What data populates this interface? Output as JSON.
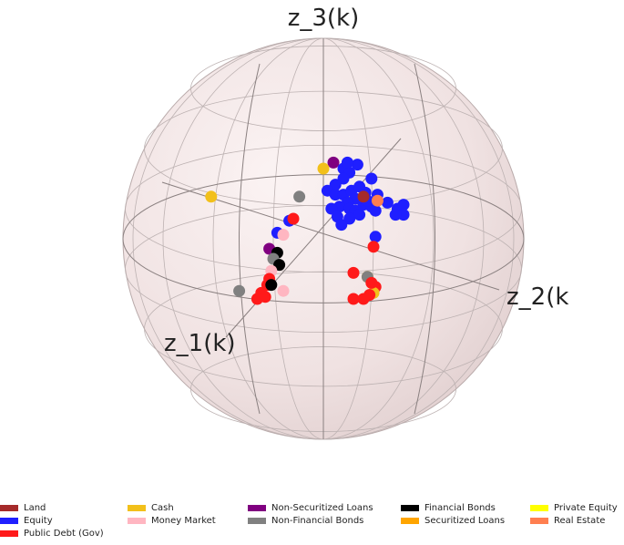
{
  "chart_data": {
    "type": "scatter",
    "title": "",
    "axes": {
      "z1": "z_1(k)",
      "z2": "z_2(k",
      "z3": "z_3(k)"
    },
    "categories": [
      {
        "name": "Land",
        "color": "#a52a2a"
      },
      {
        "name": "Equity",
        "color": "#1f1fff"
      },
      {
        "name": "Public Debt (Gov)",
        "color": "#ff1a1a"
      },
      {
        "name": "Cash",
        "color": "#f2c01a"
      },
      {
        "name": "Money Market",
        "color": "#ffb6c1"
      },
      {
        "name": "Non-Securitized Loans",
        "color": "#800080"
      },
      {
        "name": "Non-Financial Bonds",
        "color": "#808080"
      },
      {
        "name": "Financial Bonds",
        "color": "#000000"
      },
      {
        "name": "Securitized Loans",
        "color": "#ffa500"
      },
      {
        "name": "Private Equity",
        "color": "#ffff00"
      },
      {
        "name": "Real Estate",
        "color": "#ff7f50"
      }
    ],
    "points": [
      {
        "c": "Non-Securitized Loans",
        "x": 0.05,
        "y": 0.38
      },
      {
        "c": "Cash",
        "x": 0.0,
        "y": 0.35
      },
      {
        "c": "Equity",
        "x": 0.1,
        "y": 0.35
      },
      {
        "c": "Equity",
        "x": 0.13,
        "y": 0.33
      },
      {
        "c": "Equity",
        "x": 0.1,
        "y": 0.3
      },
      {
        "c": "Equity",
        "x": 0.06,
        "y": 0.27
      },
      {
        "c": "Equity",
        "x": 0.02,
        "y": 0.24
      },
      {
        "c": "Equity",
        "x": 0.06,
        "y": 0.22
      },
      {
        "c": "Equity",
        "x": 0.1,
        "y": 0.22
      },
      {
        "c": "Equity",
        "x": 0.14,
        "y": 0.24
      },
      {
        "c": "Equity",
        "x": 0.18,
        "y": 0.26
      },
      {
        "c": "Equity",
        "x": 0.21,
        "y": 0.23
      },
      {
        "c": "Equity",
        "x": 0.16,
        "y": 0.2
      },
      {
        "c": "Equity",
        "x": 0.12,
        "y": 0.18
      },
      {
        "c": "Equity",
        "x": 0.08,
        "y": 0.16
      },
      {
        "c": "Equity",
        "x": 0.04,
        "y": 0.15
      },
      {
        "c": "Equity",
        "x": 0.13,
        "y": 0.15
      },
      {
        "c": "Equity",
        "x": 0.16,
        "y": 0.14
      },
      {
        "c": "Equity",
        "x": 0.18,
        "y": 0.12
      },
      {
        "c": "Equity",
        "x": 0.13,
        "y": 0.1
      },
      {
        "c": "Equity",
        "x": 0.07,
        "y": 0.11
      },
      {
        "c": "Equity",
        "x": 0.2,
        "y": 0.17
      },
      {
        "c": "Equity",
        "x": 0.24,
        "y": 0.16
      },
      {
        "c": "Equity",
        "x": 0.32,
        "y": 0.18
      },
      {
        "c": "Equity",
        "x": 0.37,
        "y": 0.15
      },
      {
        "c": "Equity",
        "x": 0.4,
        "y": 0.12
      },
      {
        "c": "Equity",
        "x": 0.36,
        "y": 0.12
      },
      {
        "c": "Equity",
        "x": 0.4,
        "y": 0.17
      },
      {
        "c": "Equity",
        "x": 0.26,
        "y": 0.14
      },
      {
        "c": "Equity",
        "x": 0.27,
        "y": 0.22
      },
      {
        "c": "Equity",
        "x": 0.24,
        "y": 0.3
      },
      {
        "c": "Equity",
        "x": 0.17,
        "y": 0.37
      },
      {
        "c": "Equity",
        "x": 0.12,
        "y": 0.38
      },
      {
        "c": "Equity",
        "x": 0.22,
        "y": 0.19
      },
      {
        "c": "Equity",
        "x": 0.09,
        "y": 0.07
      },
      {
        "c": "Land",
        "x": 0.2,
        "y": 0.21
      },
      {
        "c": "Real Estate",
        "x": 0.27,
        "y": 0.19
      },
      {
        "c": "Equity",
        "x": -0.17,
        "y": 0.09
      },
      {
        "c": "Equity",
        "x": -0.23,
        "y": 0.03
      },
      {
        "c": "Equity",
        "x": 0.26,
        "y": 0.01
      },
      {
        "c": "Cash",
        "x": -0.56,
        "y": 0.21
      },
      {
        "c": "Non-Financial Bonds",
        "x": -0.12,
        "y": 0.21
      },
      {
        "c": "Public Debt (Gov)",
        "x": -0.15,
        "y": 0.1
      },
      {
        "c": "Money Market",
        "x": -0.2,
        "y": 0.02
      },
      {
        "c": "Non-Securitized Loans",
        "x": -0.27,
        "y": -0.05
      },
      {
        "c": "Financial Bonds",
        "x": -0.23,
        "y": -0.07
      },
      {
        "c": "Non-Financial Bonds",
        "x": -0.25,
        "y": -0.1
      },
      {
        "c": "Financial Bonds",
        "x": -0.22,
        "y": -0.13
      },
      {
        "c": "Money Market",
        "x": -0.26,
        "y": -0.16
      },
      {
        "c": "Public Debt (Gov)",
        "x": -0.27,
        "y": -0.2
      },
      {
        "c": "Public Debt (Gov)",
        "x": -0.28,
        "y": -0.23
      },
      {
        "c": "Financial Bonds",
        "x": -0.26,
        "y": -0.23
      },
      {
        "c": "Money Market",
        "x": -0.2,
        "y": -0.26
      },
      {
        "c": "Non-Financial Bonds",
        "x": -0.42,
        "y": -0.26
      },
      {
        "c": "Public Debt (Gov)",
        "x": -0.31,
        "y": -0.27
      },
      {
        "c": "Public Debt (Gov)",
        "x": -0.33,
        "y": -0.3
      },
      {
        "c": "Public Debt (Gov)",
        "x": -0.29,
        "y": -0.29
      },
      {
        "c": "Public Debt (Gov)",
        "x": 0.25,
        "y": -0.04
      },
      {
        "c": "Public Debt (Gov)",
        "x": 0.15,
        "y": -0.17
      },
      {
        "c": "Cash",
        "x": 0.22,
        "y": -0.19
      },
      {
        "c": "Non-Financial Bonds",
        "x": 0.22,
        "y": -0.19
      },
      {
        "c": "Public Debt (Gov)",
        "x": 0.26,
        "y": -0.24
      },
      {
        "c": "Cash",
        "x": 0.25,
        "y": -0.27
      },
      {
        "c": "Public Debt (Gov)",
        "x": 0.23,
        "y": -0.28
      },
      {
        "c": "Public Debt (Gov)",
        "x": 0.2,
        "y": -0.3
      },
      {
        "c": "Public Debt (Gov)",
        "x": 0.15,
        "y": -0.3
      },
      {
        "c": "Public Debt (Gov)",
        "x": 0.24,
        "y": -0.22
      }
    ]
  }
}
